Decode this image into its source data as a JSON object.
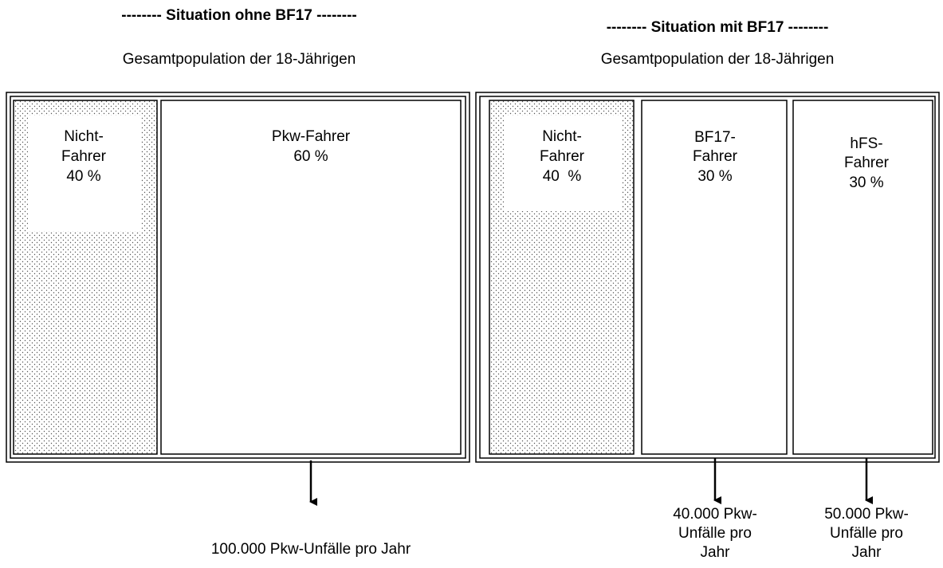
{
  "panels": [
    {
      "title": "-------- Situation ohne BF17 --------",
      "subtitle": "Gesamtpopulation der 18-Jährigen",
      "groups": [
        {
          "label": [
            "Nicht-",
            "Fahrer",
            "40 %"
          ]
        },
        {
          "label": [
            "Pkw-Fahrer",
            "60 %"
          ],
          "note": [
            "100.000 Pkw-Unfälle pro Jahr"
          ]
        }
      ]
    },
    {
      "title": "-------- Situation mit BF17 --------",
      "subtitle": "Gesamtpopulation der 18-Jährigen",
      "groups": [
        {
          "label": [
            "Nicht-",
            "Fahrer",
            "40  %"
          ]
        },
        {
          "label": [
            "BF17-",
            "Fahrer",
            "30 %"
          ],
          "note": [
            "40.000 Pkw-",
            "Unfälle pro",
            "Jahr"
          ]
        },
        {
          "label": [
            "hFS-",
            "Fahrer",
            "30 %"
          ],
          "note": [
            "50.000 Pkw-",
            "Unfälle pro",
            "Jahr"
          ]
        }
      ]
    }
  ]
}
